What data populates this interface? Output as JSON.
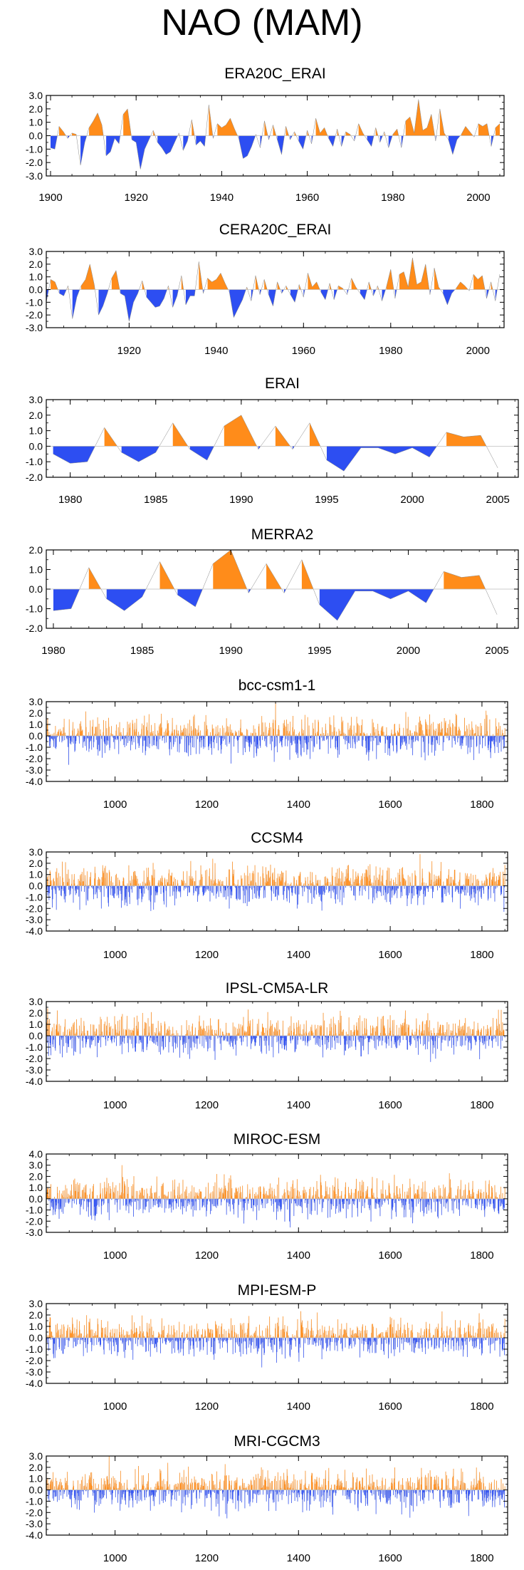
{
  "title": "NAO (MAM)",
  "colors": {
    "positive": "#ff8c1a",
    "negative": "#2d4ef2",
    "frame": "#000000"
  },
  "chart_data": [
    {
      "type": "area",
      "title": "ERA20C_ERAI",
      "xlim": [
        1899,
        2006
      ],
      "ylim": [
        -3,
        3
      ],
      "yticks": [
        "3.0",
        "2.0",
        "1.0",
        "0.0",
        "-1.0",
        "-2.0",
        "-3.0"
      ],
      "xticks": [
        1900,
        1920,
        1940,
        1960,
        1980,
        2000
      ],
      "x": [
        1900,
        1901,
        1902,
        1903,
        1904,
        1905,
        1906,
        1907,
        1908,
        1909,
        1910,
        1911,
        1912,
        1913,
        1914,
        1915,
        1916,
        1917,
        1918,
        1919,
        1920,
        1921,
        1922,
        1923,
        1924,
        1925,
        1926,
        1927,
        1928,
        1929,
        1930,
        1931,
        1932,
        1933,
        1934,
        1935,
        1936,
        1937,
        1938,
        1939,
        1940,
        1941,
        1942,
        1943,
        1944,
        1945,
        1946,
        1947,
        1948,
        1949,
        1950,
        1951,
        1952,
        1953,
        1954,
        1955,
        1956,
        1957,
        1958,
        1959,
        1960,
        1961,
        1962,
        1963,
        1964,
        1965,
        1966,
        1967,
        1968,
        1969,
        1970,
        1971,
        1972,
        1973,
        1974,
        1975,
        1976,
        1977,
        1978,
        1979,
        1980,
        1981,
        1982,
        1983,
        1984,
        1985,
        1986,
        1987,
        1988,
        1989,
        1990,
        1991,
        1992,
        1993,
        1994,
        1995,
        1996,
        1997,
        1998,
        1999,
        2000,
        2001,
        2002,
        2003,
        2004,
        2005
      ],
      "values": [
        -0.9,
        -1.0,
        0.7,
        0.3,
        -0.2,
        0.2,
        0.1,
        -2.2,
        -0.5,
        0.6,
        1.1,
        1.7,
        0.8,
        -1.5,
        -1.2,
        -0.2,
        -0.6,
        1.6,
        2.0,
        -0.3,
        -0.5,
        -2.5,
        -1.0,
        -0.3,
        0.4,
        -0.5,
        -0.9,
        -1.4,
        -1.2,
        -0.5,
        0.2,
        -1.1,
        -0.4,
        1.2,
        -0.7,
        -0.4,
        -0.8,
        2.3,
        -0.2,
        0.9,
        0.6,
        0.8,
        1.3,
        0.5,
        -0.2,
        -1.7,
        -1.5,
        -0.8,
        0.1,
        -0.9,
        1.1,
        -0.3,
        0.8,
        -0.3,
        -1.4,
        0.7,
        -0.3,
        0.3,
        -0.4,
        -1.0,
        0.4,
        -0.6,
        1.3,
        0.2,
        0.6,
        -0.2,
        -0.8,
        0.5,
        -0.8,
        0.3,
        0.1,
        -0.4,
        0.9,
        0.2,
        -0.3,
        -0.8,
        0.6,
        -0.5,
        0.3,
        -0.9,
        0.1,
        0.5,
        -0.9,
        1.1,
        1.4,
        0.2,
        2.7,
        0.4,
        0.6,
        1.6,
        -0.4,
        2.0,
        0.2,
        -0.3,
        -1.4,
        -0.3,
        0.1,
        0.7,
        0.3,
        -0.1,
        0.9,
        0.7,
        0.9,
        -0.8,
        0.6,
        0.9
      ]
    },
    {
      "type": "area",
      "title": "CERA20C_ERAI",
      "xlim": [
        1901,
        2006
      ],
      "ylim": [
        -3,
        3
      ],
      "yticks": [
        "3.0",
        "2.0",
        "1.0",
        "0.0",
        "-1.0",
        "-2.0",
        "-3.0"
      ],
      "xticks": [
        1920,
        1940,
        1960,
        1980,
        2000
      ],
      "x": [
        1901,
        1902,
        1903,
        1904,
        1905,
        1906,
        1907,
        1908,
        1909,
        1910,
        1911,
        1912,
        1913,
        1914,
        1915,
        1916,
        1917,
        1918,
        1919,
        1920,
        1921,
        1922,
        1923,
        1924,
        1925,
        1926,
        1927,
        1928,
        1929,
        1930,
        1931,
        1932,
        1933,
        1934,
        1935,
        1936,
        1937,
        1938,
        1939,
        1940,
        1941,
        1942,
        1943,
        1944,
        1945,
        1946,
        1947,
        1948,
        1949,
        1950,
        1951,
        1952,
        1953,
        1954,
        1955,
        1956,
        1957,
        1958,
        1959,
        1960,
        1961,
        1962,
        1963,
        1964,
        1965,
        1966,
        1967,
        1968,
        1969,
        1970,
        1971,
        1972,
        1973,
        1974,
        1975,
        1976,
        1977,
        1978,
        1979,
        1980,
        1981,
        1982,
        1983,
        1984,
        1985,
        1986,
        1987,
        1988,
        1989,
        1990,
        1991,
        1992,
        1993,
        1994,
        1995,
        1996,
        1997,
        1998,
        1999,
        2000,
        2001,
        2002,
        2003,
        2004,
        2005
      ],
      "values": [
        -1.0,
        0.8,
        0.6,
        -0.3,
        -0.5,
        0.3,
        -2.3,
        -0.6,
        0.3,
        0.8,
        2.0,
        0.4,
        -2.0,
        -1.3,
        -0.3,
        0.9,
        1.5,
        -0.3,
        -0.5,
        -2.5,
        -1.0,
        -0.3,
        0.7,
        -0.6,
        -1.0,
        -1.4,
        -1.3,
        -0.7,
        0.3,
        -1.4,
        -0.5,
        1.1,
        -1.2,
        -0.5,
        -0.5,
        2.2,
        -0.3,
        0.9,
        0.6,
        0.8,
        1.3,
        0.5,
        -0.2,
        -2.2,
        -1.5,
        -0.8,
        0.2,
        -0.9,
        1.1,
        -0.4,
        0.8,
        -0.4,
        -1.3,
        0.6,
        -0.3,
        0.3,
        -0.4,
        -1.0,
        0.4,
        -0.6,
        1.3,
        0.2,
        0.6,
        -0.2,
        -0.8,
        0.5,
        -0.8,
        0.3,
        0.1,
        -0.4,
        0.9,
        0.2,
        -0.3,
        -0.8,
        0.6,
        -0.5,
        0.3,
        -0.9,
        0.2,
        1.6,
        -0.7,
        1.2,
        1.4,
        0.2,
        2.5,
        0.4,
        0.6,
        2.0,
        -0.4,
        1.7,
        0.2,
        -0.3,
        -1.2,
        -0.3,
        0.1,
        0.6,
        0.3,
        -0.1,
        1.2,
        0.8,
        1.1,
        -0.7,
        0.6,
        -0.9,
        1.2
      ]
    },
    {
      "type": "area",
      "title": "ERAI",
      "xlim": [
        1978.6,
        2006.2
      ],
      "ylim": [
        -2,
        3
      ],
      "yticks": [
        "3.0",
        "2.0",
        "1.0",
        "0.0",
        "-1.0",
        "-2.0"
      ],
      "xticks": [
        1980,
        1985,
        1990,
        1995,
        2000,
        2005
      ],
      "x": [
        1979,
        1980,
        1981,
        1982,
        1983,
        1984,
        1985,
        1986,
        1987,
        1988,
        1989,
        1990,
        1991,
        1992,
        1993,
        1994,
        1995,
        1996,
        1997,
        1998,
        1999,
        2000,
        2001,
        2002,
        2003,
        2004,
        2005
      ],
      "values": [
        -0.5,
        -1.1,
        -1.0,
        1.2,
        -0.4,
        -1.0,
        -0.4,
        1.5,
        -0.2,
        -0.9,
        1.3,
        2.0,
        -0.2,
        1.3,
        -0.2,
        1.5,
        -0.9,
        -1.6,
        -0.1,
        -0.1,
        -0.5,
        -0.1,
        -0.7,
        0.9,
        0.6,
        0.7,
        -1.4
      ]
    },
    {
      "type": "area",
      "title": "MERRA2",
      "xlim": [
        1979.6,
        2006.2
      ],
      "ylim": [
        -2,
        2
      ],
      "yticks": [
        "2.0",
        "1.0",
        "0.0",
        "-1.0",
        "-2.0"
      ],
      "xticks": [
        1980,
        1985,
        1990,
        1995,
        2000,
        2005
      ],
      "x": [
        1980,
        1981,
        1982,
        1983,
        1984,
        1985,
        1986,
        1987,
        1988,
        1989,
        1990,
        1991,
        1992,
        1993,
        1994,
        1995,
        1996,
        1997,
        1998,
        1999,
        2000,
        2001,
        2002,
        2003,
        2004,
        2005
      ],
      "values": [
        -1.1,
        -1.0,
        1.1,
        -0.5,
        -1.1,
        -0.4,
        1.4,
        -0.3,
        -0.9,
        1.3,
        2.0,
        -0.2,
        1.3,
        -0.2,
        1.5,
        -0.8,
        -1.6,
        -0.1,
        -0.1,
        -0.5,
        -0.1,
        -0.7,
        0.9,
        0.6,
        0.7,
        -1.3
      ]
    },
    {
      "type": "bar",
      "title": "bcc-csm1-1",
      "xlim": [
        850,
        1856
      ],
      "ylim": [
        -4,
        3
      ],
      "yticks": [
        "3.0",
        "2.0",
        "1.0",
        "0.0",
        "-1.0",
        "-2.0",
        "-3.0",
        "-4.0"
      ],
      "xticks": [
        1000,
        1200,
        1400,
        1600,
        1800
      ],
      "series_generator": {
        "start_year": 850,
        "end_year": 1850,
        "seed": 11,
        "scale": 1.0,
        "spike_year": 1350,
        "spike_value": 3.0
      }
    },
    {
      "type": "bar",
      "title": "CCSM4",
      "xlim": [
        850,
        1856
      ],
      "ylim": [
        -4,
        3
      ],
      "yticks": [
        "3.0",
        "2.0",
        "1.0",
        "0.0",
        "-1.0",
        "-2.0",
        "-3.0",
        "-4.0"
      ],
      "xticks": [
        1000,
        1200,
        1400,
        1600,
        1800
      ],
      "series_generator": {
        "start_year": 850,
        "end_year": 1850,
        "seed": 23,
        "scale": 1.0,
        "spike_year": 1665,
        "spike_value": 2.8
      }
    },
    {
      "type": "bar",
      "title": "IPSL-CM5A-LR",
      "xlim": [
        850,
        1856
      ],
      "ylim": [
        -4,
        3
      ],
      "yticks": [
        "3.0",
        "2.0",
        "1.0",
        "0.0",
        "-1.0",
        "-2.0",
        "-3.0",
        "-4.0"
      ],
      "xticks": [
        1000,
        1200,
        1400,
        1600,
        1800
      ],
      "series_generator": {
        "start_year": 850,
        "end_year": 1850,
        "seed": 37,
        "scale": 1.0,
        "spike_year": 1290,
        "spike_value": 2.3
      }
    },
    {
      "type": "bar",
      "title": "MIROC-ESM",
      "xlim": [
        850,
        1856
      ],
      "ylim": [
        -3,
        4
      ],
      "yticks": [
        "4.0",
        "3.0",
        "2.0",
        "1.0",
        "0.0",
        "-1.0",
        "-2.0",
        "-3.0"
      ],
      "xticks": [
        1000,
        1200,
        1400,
        1600,
        1800
      ],
      "series_generator": {
        "start_year": 850,
        "end_year": 1850,
        "seed": 41,
        "scale": 1.0,
        "spike_year": 1015,
        "spike_value": 3.0
      }
    },
    {
      "type": "bar",
      "title": "MPI-ESM-P",
      "xlim": [
        850,
        1856
      ],
      "ylim": [
        -4,
        3
      ],
      "yticks": [
        "3.0",
        "2.0",
        "1.0",
        "0.0",
        "-1.0",
        "-2.0",
        "-3.0",
        "-4.0"
      ],
      "xticks": [
        1000,
        1200,
        1400,
        1600,
        1800
      ],
      "series_generator": {
        "start_year": 850,
        "end_year": 1850,
        "seed": 53,
        "scale": 0.95,
        "spike_year": 1320,
        "spike_value": -2.6
      }
    },
    {
      "type": "bar",
      "title": "MRI-CGCM3",
      "xlim": [
        850,
        1856
      ],
      "ylim": [
        -4,
        3
      ],
      "yticks": [
        "3.0",
        "2.0",
        "1.0",
        "0.0",
        "-1.0",
        "-2.0",
        "-3.0",
        "-4.0"
      ],
      "xticks": [
        1000,
        1200,
        1400,
        1600,
        1800
      ],
      "series_generator": {
        "start_year": 850,
        "end_year": 1850,
        "seed": 67,
        "scale": 1.0,
        "spike_year": 987,
        "spike_value": 3.1
      }
    }
  ]
}
